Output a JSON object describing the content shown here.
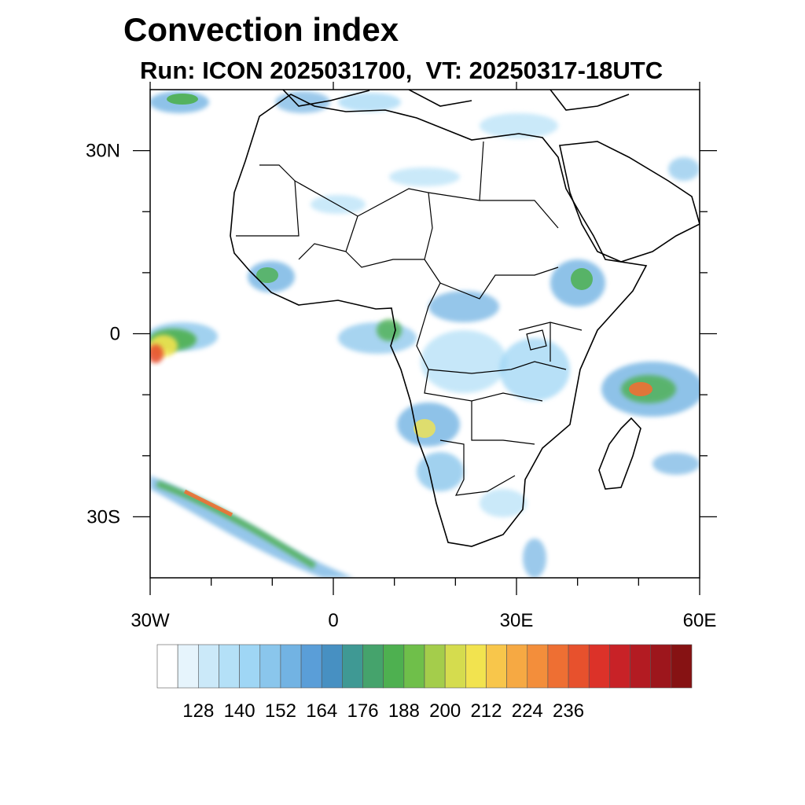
{
  "header": {
    "title": "Convection index",
    "subtitle": "Run: ICON 2025031700,  VT: 20250317-18UTC"
  },
  "map": {
    "lon_range": [
      -30,
      60
    ],
    "lat_range": [
      -40,
      40
    ],
    "x_ticks": [
      {
        "value": -30,
        "label": "30W"
      },
      {
        "value": 0,
        "label": "0"
      },
      {
        "value": 30,
        "label": "30E"
      },
      {
        "value": 60,
        "label": "60E"
      }
    ],
    "x_minor_ticks": [
      -20,
      -10,
      10,
      20,
      40,
      50
    ],
    "y_ticks": [
      {
        "value": 30,
        "label": "30N"
      },
      {
        "value": 0,
        "label": "0"
      },
      {
        "value": -30,
        "label": "30S"
      }
    ],
    "y_minor_ticks": [
      -20,
      -10,
      10,
      20
    ]
  },
  "colorbar": {
    "colors": [
      "#ffffff",
      "#e6f4fc",
      "#cbe9f9",
      "#b4e0f7",
      "#9fd6f5",
      "#8ac6ec",
      "#72b3e3",
      "#5a9ed8",
      "#4790c2",
      "#3f9994",
      "#45a36c",
      "#4eb050",
      "#6fbf4a",
      "#a4cd4b",
      "#d5dc4e",
      "#f2e34f",
      "#f8c64b",
      "#f6a943",
      "#f38e3b",
      "#ee6f33",
      "#e7512d",
      "#dc3229",
      "#c82227",
      "#b31b22",
      "#9d161c",
      "#861213"
    ],
    "labels": [
      "128",
      "140",
      "152",
      "164",
      "176",
      "188",
      "200",
      "212",
      "224",
      "236"
    ]
  }
}
